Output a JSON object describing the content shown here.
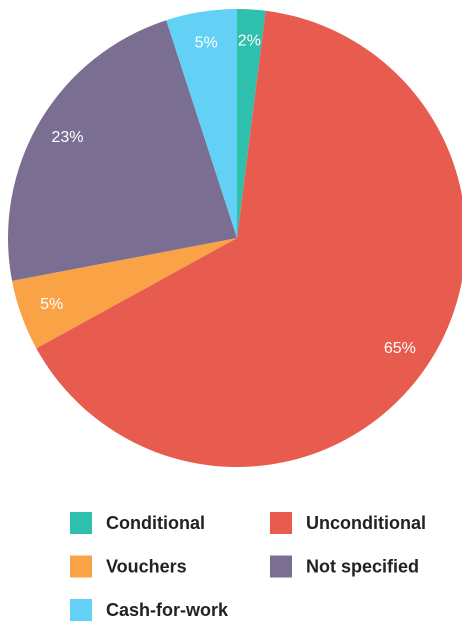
{
  "chart_data": {
    "type": "pie",
    "categories": [
      "Conditional",
      "Unconditional",
      "Vouchers",
      "Not specified",
      "Cash-for-work"
    ],
    "values": [
      2,
      65,
      5,
      23,
      5
    ],
    "value_labels": [
      "2%",
      "65%",
      "5%",
      "23%",
      "5%"
    ],
    "colors": [
      "#2ebfad",
      "#e85c4f",
      "#f9a346",
      "#7b6e93",
      "#62d1f5"
    ]
  }
}
